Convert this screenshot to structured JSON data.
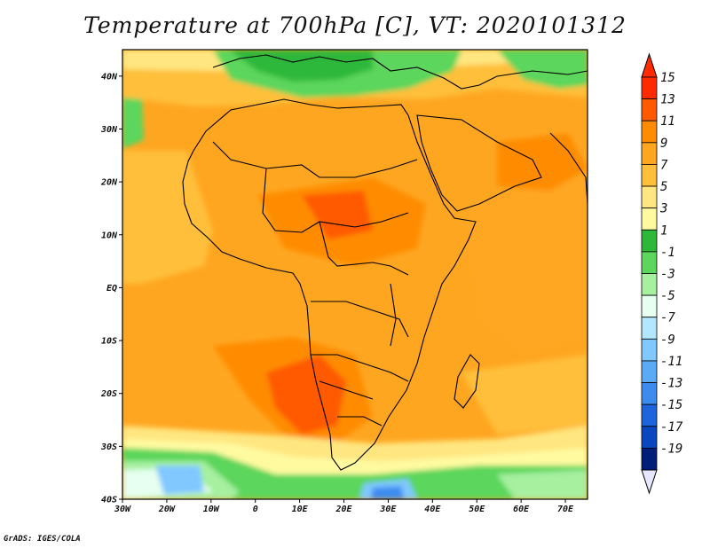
{
  "title": "Temperature at 700hPa [C], VT: 2020101312",
  "credit": "GrADS: IGES/COLA",
  "map": {
    "lon_range": [
      -30,
      75
    ],
    "lat_range": [
      -40,
      45
    ],
    "lon_ticks": [
      {
        "value": -30,
        "label": "30W"
      },
      {
        "value": -20,
        "label": "20W"
      },
      {
        "value": -10,
        "label": "10W"
      },
      {
        "value": 0,
        "label": "0"
      },
      {
        "value": 10,
        "label": "10E"
      },
      {
        "value": 20,
        "label": "20E"
      },
      {
        "value": 30,
        "label": "30E"
      },
      {
        "value": 40,
        "label": "40E"
      },
      {
        "value": 50,
        "label": "50E"
      },
      {
        "value": 60,
        "label": "60E"
      },
      {
        "value": 70,
        "label": "70E"
      }
    ],
    "lat_ticks": [
      {
        "value": 40,
        "label": "40N"
      },
      {
        "value": 30,
        "label": "30N"
      },
      {
        "value": 20,
        "label": "20N"
      },
      {
        "value": 10,
        "label": "10N"
      },
      {
        "value": 0,
        "label": "EQ"
      },
      {
        "value": -10,
        "label": "10S"
      },
      {
        "value": -20,
        "label": "20S"
      },
      {
        "value": -30,
        "label": "30S"
      },
      {
        "value": -40,
        "label": "40S"
      }
    ]
  },
  "colorbar": {
    "levels": [
      {
        "label": "15",
        "color": "#ff2a00"
      },
      {
        "label": "13",
        "color": "#ff5a00"
      },
      {
        "label": "11",
        "color": "#ff8c00"
      },
      {
        "label": "9",
        "color": "#ffa621"
      },
      {
        "label": "7",
        "color": "#ffbf3a"
      },
      {
        "label": "5",
        "color": "#ffe680"
      },
      {
        "label": "3",
        "color": "#fffaa0"
      },
      {
        "label": "1",
        "color": "#2db83a"
      },
      {
        "label": "-1",
        "color": "#5cd65c"
      },
      {
        "label": "-3",
        "color": "#a6f0a0"
      },
      {
        "label": "-5",
        "color": "#e6fff0"
      },
      {
        "label": "-7",
        "color": "#b3e6ff"
      },
      {
        "label": "-9",
        "color": "#80c8ff"
      },
      {
        "label": "-11",
        "color": "#5aaaf5"
      },
      {
        "label": "-13",
        "color": "#3c8cf0"
      },
      {
        "label": "-15",
        "color": "#1e64dc"
      },
      {
        "label": "-17",
        "color": "#0a46be"
      },
      {
        "label": "-19",
        "color": "#001e78"
      }
    ],
    "top_color": "#ff2a00",
    "bottom_color": "#e6e6ff"
  }
}
